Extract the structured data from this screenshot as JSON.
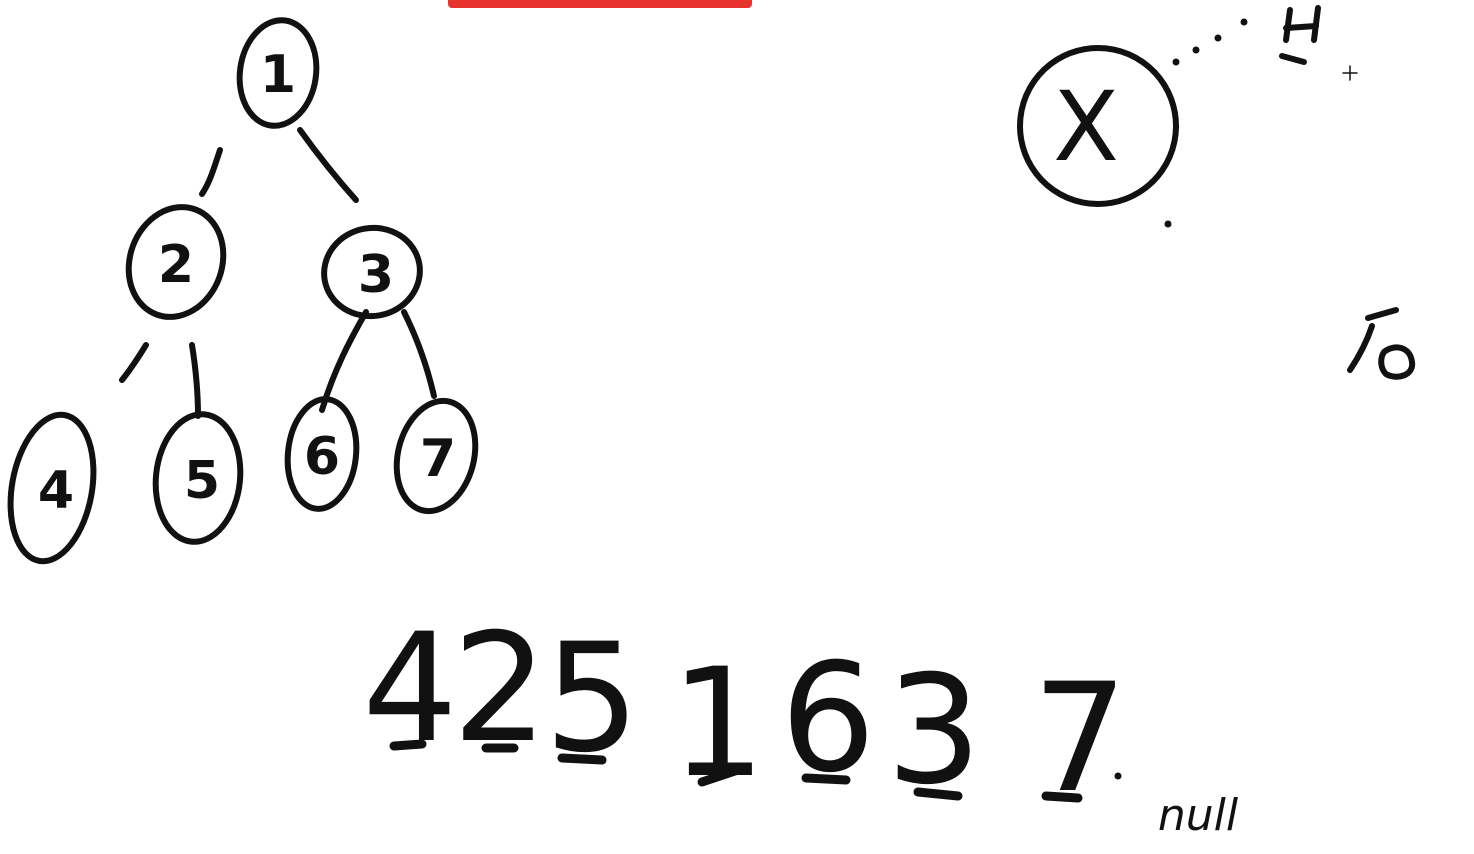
{
  "tree": {
    "nodes": [
      {
        "id": "n1",
        "label": "1"
      },
      {
        "id": "n2",
        "label": "2"
      },
      {
        "id": "n3",
        "label": "3"
      },
      {
        "id": "n4",
        "label": "4"
      },
      {
        "id": "n5",
        "label": "5"
      },
      {
        "id": "n6",
        "label": "6"
      },
      {
        "id": "n7",
        "label": "7"
      }
    ],
    "edges": [
      {
        "from": "1",
        "to": "2"
      },
      {
        "from": "1",
        "to": "3"
      },
      {
        "from": "2",
        "to": "4"
      },
      {
        "from": "2",
        "to": "5"
      },
      {
        "from": "3",
        "to": "6"
      },
      {
        "from": "3",
        "to": "7"
      }
    ]
  },
  "sequence": {
    "values": [
      "4",
      "2",
      "5",
      "1",
      "6",
      "3",
      "7"
    ],
    "null_label": "null"
  },
  "side_node": {
    "label": "X"
  },
  "colors": {
    "ink": "#111111",
    "banner": "#e8322d",
    "background": "#ffffff"
  }
}
